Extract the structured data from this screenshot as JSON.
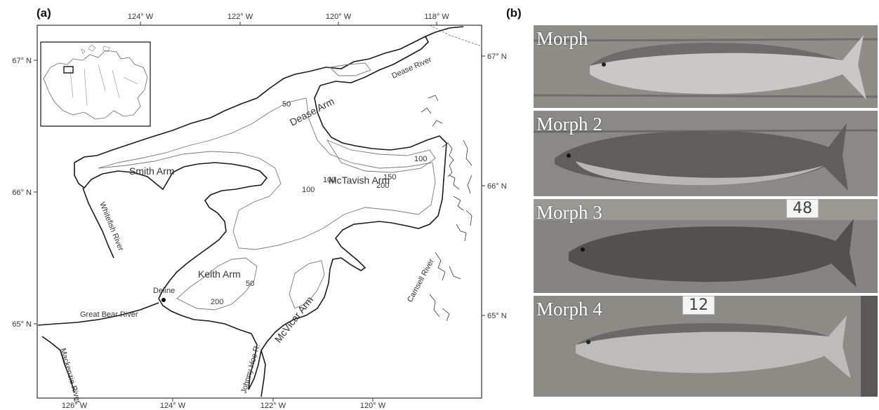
{
  "panels": {
    "a_label": "(a)",
    "b_label": "(b)"
  },
  "map": {
    "lon_ticks_top": [
      "124° W",
      "122° W",
      "120° W",
      "118° W"
    ],
    "lon_ticks_bottom": [
      "126° W",
      "124° W",
      "122° W",
      "120° W"
    ],
    "lat_ticks_left": [
      "67° N",
      "66° N",
      "65° N"
    ],
    "lat_ticks_right": [
      "67° N",
      "66° N",
      "65° N"
    ],
    "places": {
      "dease_arm": "Dease Arm",
      "dease_river": "Dease River",
      "smith_arm": "Smith Arm",
      "mctavish_arm": "McTavish Arm",
      "whitefish_river": "Whitefish River",
      "keith_arm": "Keith Arm",
      "deline": "Deline",
      "great_bear_river": "Great Bear River",
      "mcvicar_arm": "McVicar Arm",
      "johnny_hoe": "Johnny Hoe R.",
      "camsell_river": "Camsell River",
      "mackenzie_river": "Mackenzie River"
    },
    "depth_labels": [
      "50",
      "100",
      "150",
      "200",
      "50",
      "100",
      "200",
      "100"
    ]
  },
  "photos": {
    "morph1": "Morph",
    "morph2": "Morph 2",
    "morph3": "Morph 3",
    "morph4": "Morph 4",
    "tag3": "48",
    "tag4": "12"
  }
}
